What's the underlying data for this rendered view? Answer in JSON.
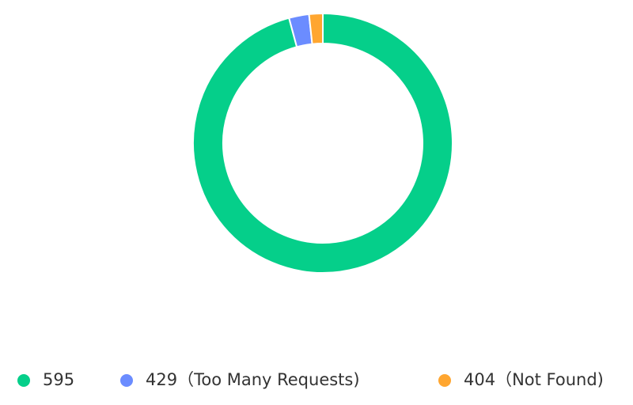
{
  "chart_data": {
    "type": "donut",
    "series": [
      {
        "name": "595",
        "color": "#05cf8a",
        "value": 95.8
      },
      {
        "name": "429（Too Many Requests)",
        "color": "#6b8cff",
        "value": 2.5
      },
      {
        "name": "404（Not Found)",
        "color": "#ffa630",
        "value": 1.7
      }
    ],
    "legend": "bottom"
  }
}
